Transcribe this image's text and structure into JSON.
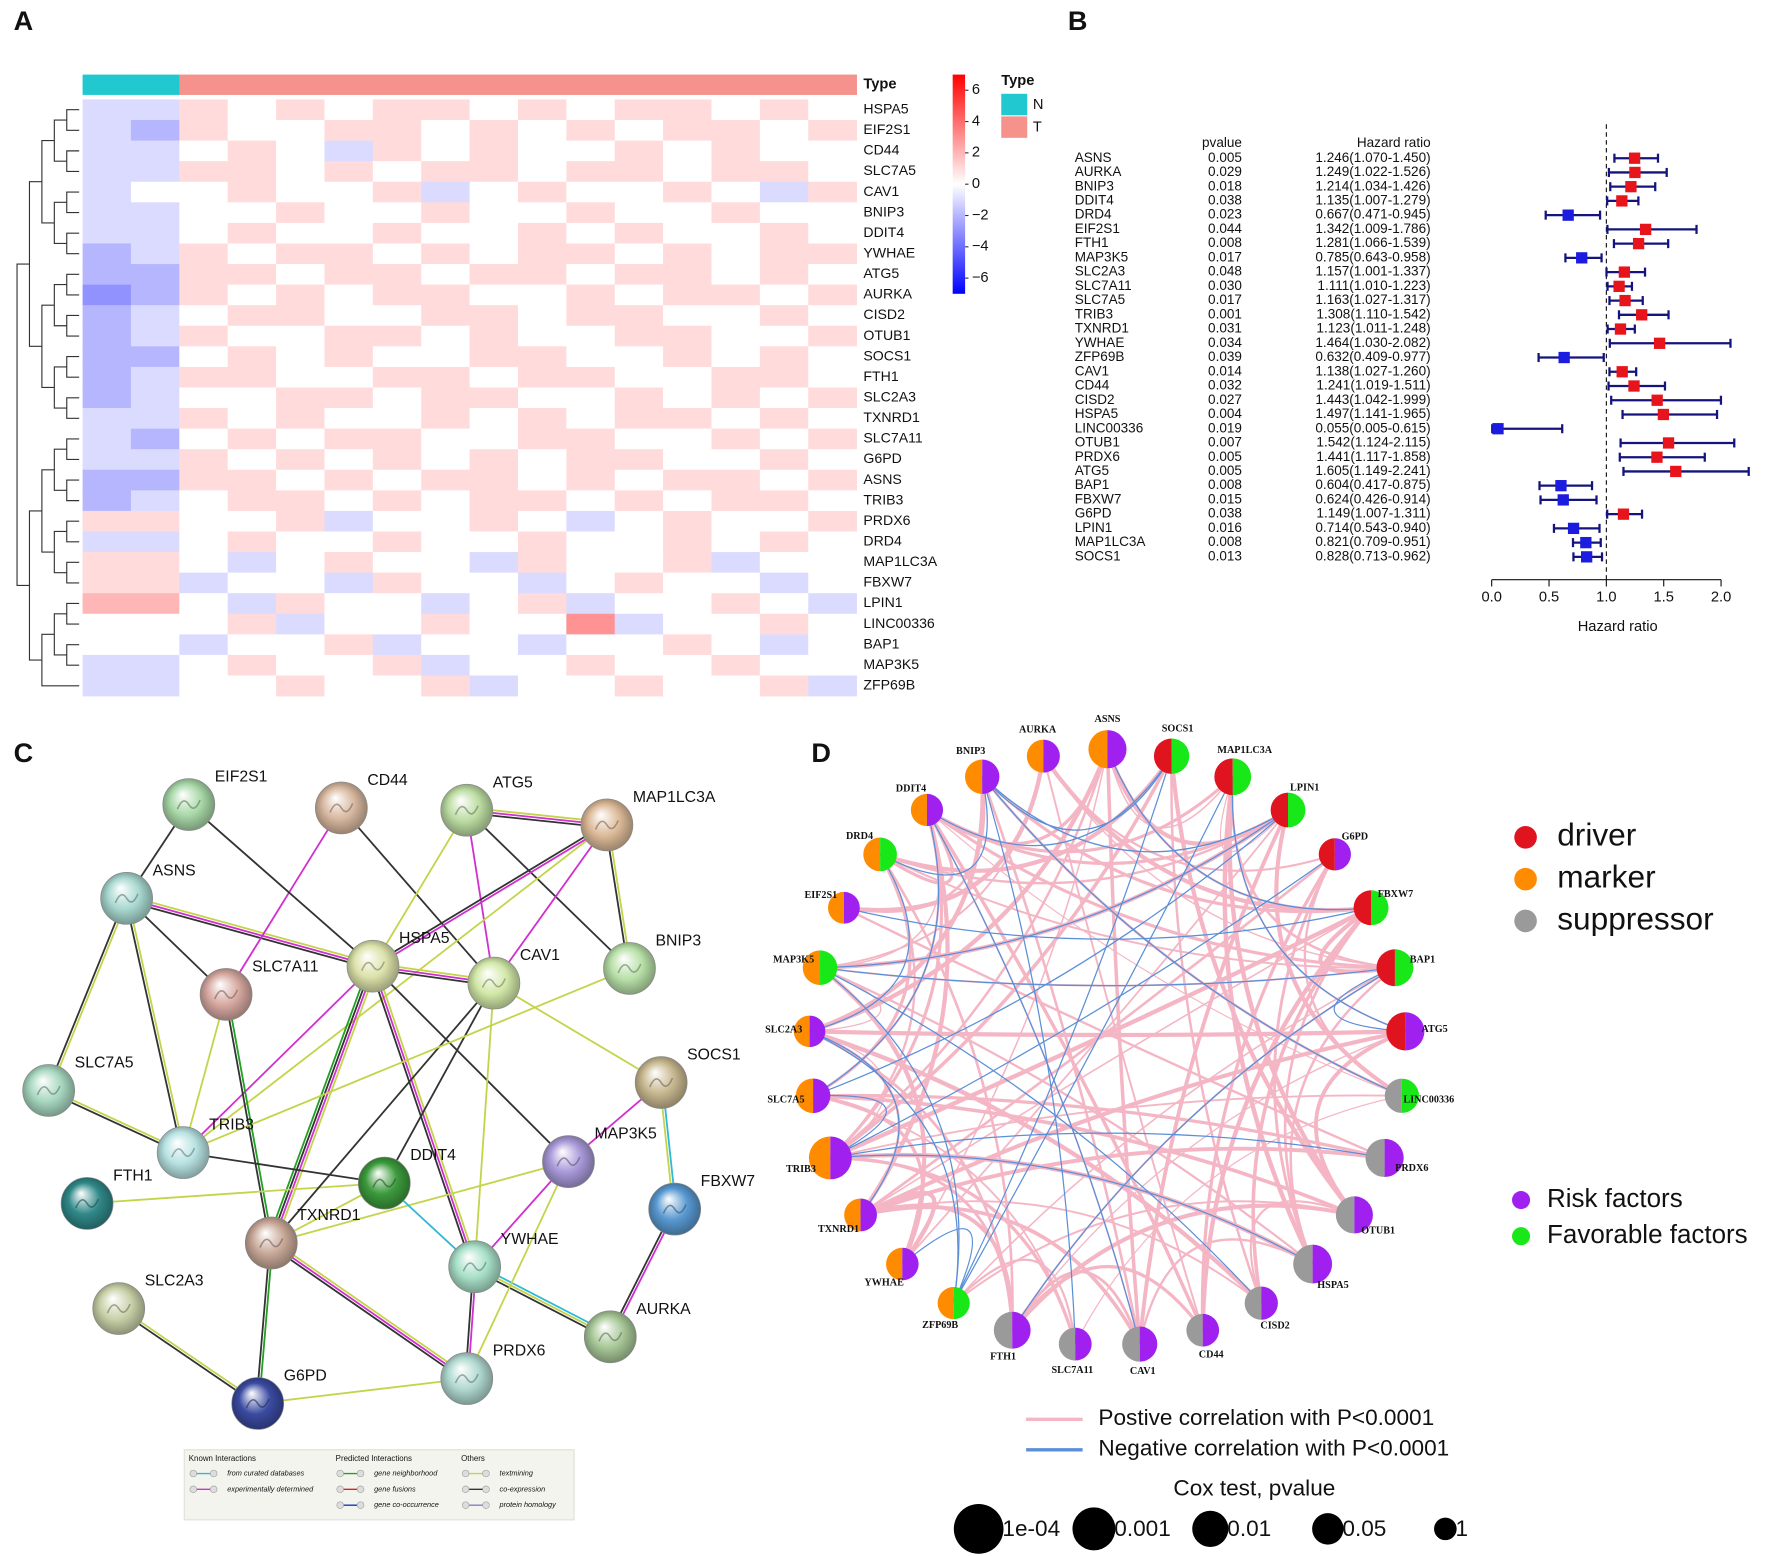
{
  "chart_data": [
    {
      "type": "heatmap",
      "panel": "A",
      "type_bar_label": "Type",
      "rows": [
        "HSPA5",
        "EIF2S1",
        "CD44",
        "SLC7A5",
        "CAV1",
        "BNIP3",
        "DDIT4",
        "YWHAE",
        "ATG5",
        "AURKA",
        "CISD2",
        "OTUB1",
        "SOCS1",
        "FTH1",
        "SLC2A3",
        "TXNRD1",
        "SLC7A11",
        "G6PD",
        "ASNS",
        "TRIB3",
        "PRDX6",
        "DRD4",
        "MAP1LC3A",
        "FBXW7",
        "LPIN1",
        "LINC00336",
        "BAP1",
        "MAP3K5",
        "ZFP69B"
      ],
      "column_types": [
        "N",
        "N",
        "T",
        "T",
        "T",
        "T",
        "T",
        "T",
        "T",
        "T",
        "T",
        "T",
        "T",
        "T",
        "T",
        "T"
      ],
      "values": [
        [
          -1,
          -1,
          1,
          0,
          1,
          0,
          1,
          1,
          0,
          1,
          0,
          1,
          1,
          0,
          1,
          0
        ],
        [
          -1,
          -2,
          1,
          0,
          0,
          1,
          1,
          0,
          1,
          0,
          1,
          0,
          1,
          1,
          0,
          1
        ],
        [
          -1,
          -1,
          0,
          1,
          0,
          -1,
          1,
          0,
          1,
          0,
          0,
          1,
          0,
          1,
          0,
          0
        ],
        [
          -1,
          -1,
          1,
          1,
          0,
          1,
          0,
          1,
          1,
          0,
          1,
          1,
          0,
          1,
          1,
          0
        ],
        [
          -1,
          0,
          0,
          1,
          0,
          0,
          1,
          -1,
          0,
          1,
          0,
          0,
          1,
          0,
          -1,
          1
        ],
        [
          -1,
          -1,
          0,
          0,
          1,
          0,
          0,
          1,
          0,
          0,
          1,
          0,
          0,
          1,
          0,
          0
        ],
        [
          -1,
          -1,
          0,
          1,
          0,
          0,
          1,
          0,
          0,
          1,
          0,
          1,
          0,
          0,
          1,
          0
        ],
        [
          -2,
          -1,
          1,
          0,
          1,
          1,
          0,
          1,
          0,
          1,
          1,
          0,
          1,
          0,
          1,
          1
        ],
        [
          -2,
          -2,
          1,
          1,
          0,
          1,
          1,
          0,
          1,
          1,
          0,
          1,
          1,
          0,
          1,
          0
        ],
        [
          -3,
          -2,
          1,
          0,
          1,
          0,
          1,
          1,
          0,
          0,
          1,
          0,
          1,
          1,
          0,
          1
        ],
        [
          -2,
          -1,
          0,
          1,
          1,
          0,
          0,
          1,
          1,
          0,
          1,
          1,
          0,
          0,
          1,
          0
        ],
        [
          -2,
          -1,
          1,
          0,
          0,
          1,
          1,
          0,
          1,
          0,
          0,
          1,
          1,
          0,
          0,
          1
        ],
        [
          -2,
          -2,
          0,
          1,
          0,
          1,
          0,
          0,
          1,
          1,
          0,
          0,
          1,
          0,
          1,
          0
        ],
        [
          -2,
          -1,
          1,
          1,
          0,
          0,
          1,
          1,
          0,
          1,
          1,
          0,
          0,
          1,
          1,
          0
        ],
        [
          -2,
          -1,
          0,
          0,
          1,
          1,
          0,
          1,
          1,
          0,
          0,
          1,
          0,
          1,
          0,
          1
        ],
        [
          -1,
          -1,
          1,
          0,
          1,
          0,
          0,
          1,
          0,
          1,
          0,
          1,
          1,
          0,
          1,
          0
        ],
        [
          -1,
          -2,
          0,
          1,
          0,
          1,
          1,
          0,
          0,
          1,
          1,
          0,
          0,
          1,
          0,
          1
        ],
        [
          -1,
          -1,
          1,
          0,
          1,
          0,
          1,
          0,
          1,
          0,
          1,
          1,
          0,
          0,
          1,
          0
        ],
        [
          -2,
          -2,
          1,
          1,
          0,
          1,
          0,
          1,
          1,
          0,
          1,
          0,
          1,
          1,
          0,
          1
        ],
        [
          -2,
          -1,
          0,
          1,
          1,
          0,
          1,
          0,
          1,
          1,
          0,
          1,
          0,
          1,
          1,
          0
        ],
        [
          1,
          1,
          0,
          0,
          1,
          -1,
          0,
          0,
          1,
          0,
          -1,
          0,
          1,
          0,
          0,
          1
        ],
        [
          -1,
          -1,
          0,
          1,
          0,
          0,
          1,
          0,
          0,
          1,
          0,
          0,
          1,
          0,
          1,
          0
        ],
        [
          1,
          1,
          0,
          -1,
          0,
          1,
          0,
          0,
          -1,
          1,
          0,
          0,
          1,
          -1,
          0,
          0
        ],
        [
          1,
          1,
          -1,
          0,
          0,
          -1,
          1,
          0,
          0,
          -1,
          0,
          1,
          0,
          0,
          -1,
          0
        ],
        [
          2,
          2,
          0,
          -1,
          1,
          0,
          0,
          -1,
          0,
          1,
          -1,
          0,
          0,
          1,
          0,
          -1
        ],
        [
          0,
          0,
          0,
          1,
          -1,
          0,
          0,
          1,
          0,
          0,
          3,
          -1,
          0,
          0,
          1,
          0
        ],
        [
          0,
          0,
          -1,
          0,
          0,
          1,
          -1,
          0,
          0,
          -1,
          0,
          0,
          1,
          0,
          -1,
          0
        ],
        [
          -1,
          -1,
          0,
          1,
          0,
          0,
          1,
          -1,
          0,
          0,
          1,
          0,
          0,
          1,
          0,
          0
        ],
        [
          -1,
          -1,
          0,
          0,
          1,
          0,
          0,
          1,
          -1,
          0,
          0,
          1,
          0,
          0,
          1,
          -1
        ]
      ],
      "type_legend": {
        "title": "Type",
        "names": [
          "N",
          "T"
        ],
        "colors": [
          "#22c8cf",
          "#f4928b"
        ]
      },
      "colorbar": {
        "lim": [
          -7,
          7
        ],
        "colors": [
          "#0000ff",
          "#ffffff",
          "#ff0000"
        ],
        "ticks": [
          6,
          4,
          2,
          0,
          {
            "value": -2,
            "label": "−2"
          },
          {
            "value": -4,
            "label": "−4"
          },
          {
            "value": -6,
            "label": "−6"
          }
        ]
      }
    },
    {
      "type": "forest",
      "panel": "B",
      "pvalue_header": "pvalue",
      "hr_header": "Hazard ratio",
      "xlabel": "Hazard ratio",
      "genes": [
        "ASNS",
        "AURKA",
        "BNIP3",
        "DDIT4",
        "DRD4",
        "EIF2S1",
        "FTH1",
        "MAP3K5",
        "SLC2A3",
        "SLC7A11",
        "SLC7A5",
        "TRIB3",
        "TXNRD1",
        "YWHAE",
        "ZFP69B",
        "CAV1",
        "CD44",
        "CISD2",
        "HSPA5",
        "LINC00336",
        "OTUB1",
        "PRDX6",
        "ATG5",
        "BAP1",
        "FBXW7",
        "G6PD",
        "LPIN1",
        "MAP1LC3A",
        "SOCS1"
      ],
      "pvalues": [
        0.005,
        0.029,
        0.018,
        0.038,
        0.023,
        0.044,
        0.008,
        0.017,
        0.048,
        0.03,
        0.017,
        0.001,
        0.031,
        0.034,
        0.039,
        0.014,
        0.032,
        0.027,
        0.004,
        0.019,
        0.007,
        0.005,
        0.005,
        0.008,
        0.015,
        0.038,
        0.016,
        0.008,
        0.013
      ],
      "pvalue_labels": [
        "0.005",
        "0.029",
        "0.018",
        "0.038",
        "0.023",
        "0.044",
        "0.008",
        "0.017",
        "0.048",
        "0.030",
        "0.017",
        "0.001",
        "0.031",
        "0.034",
        "0.039",
        "0.014",
        "0.032",
        "0.027",
        "0.004",
        "0.019",
        "0.007",
        "0.005",
        "0.005",
        "0.008",
        "0.015",
        "0.038",
        "0.016",
        "0.008",
        "0.013"
      ],
      "hr": [
        1.246,
        1.249,
        1.214,
        1.135,
        0.667,
        1.342,
        1.281,
        0.785,
        1.157,
        1.111,
        1.163,
        1.308,
        1.123,
        1.464,
        0.632,
        1.138,
        1.241,
        1.443,
        1.497,
        0.055,
        1.542,
        1.441,
        1.605,
        0.604,
        0.624,
        1.149,
        0.714,
        0.821,
        0.828
      ],
      "lower": [
        1.07,
        1.022,
        1.034,
        1.007,
        0.471,
        1.009,
        1.066,
        0.643,
        1.001,
        1.01,
        1.027,
        1.11,
        1.011,
        1.03,
        0.409,
        1.027,
        1.019,
        1.042,
        1.141,
        0.005,
        1.124,
        1.117,
        1.149,
        0.417,
        0.426,
        1.007,
        0.543,
        0.709,
        0.713
      ],
      "upper": [
        1.45,
        1.526,
        1.426,
        1.279,
        0.945,
        1.786,
        1.539,
        0.958,
        1.337,
        1.223,
        1.317,
        1.542,
        1.248,
        2.082,
        0.977,
        1.26,
        1.511,
        1.999,
        1.965,
        0.615,
        2.115,
        1.858,
        2.241,
        0.875,
        0.914,
        1.311,
        0.94,
        0.951,
        0.962
      ],
      "hr_labels": [
        "1.246(1.070-1.450)",
        "1.249(1.022-1.526)",
        "1.214(1.034-1.426)",
        "1.135(1.007-1.279)",
        "0.667(0.471-0.945)",
        "1.342(1.009-1.786)",
        "1.281(1.066-1.539)",
        "0.785(0.643-0.958)",
        "1.157(1.001-1.337)",
        "1.111(1.010-1.223)",
        "1.163(1.027-1.317)",
        "1.308(1.110-1.542)",
        "1.123(1.011-1.248)",
        "1.464(1.030-2.082)",
        "0.632(0.409-0.977)",
        "1.138(1.027-1.260)",
        "1.241(1.019-1.511)",
        "1.443(1.042-1.999)",
        "1.497(1.141-1.965)",
        "0.055(0.005-0.615)",
        "1.542(1.124-2.115)",
        "1.441(1.117-1.858)",
        "1.605(1.149-2.241)",
        "0.604(0.417-0.875)",
        "0.624(0.426-0.914)",
        "1.149(1.007-1.311)",
        "0.714(0.543-0.940)",
        "0.821(0.709-0.951)",
        "0.828(0.713-0.962)"
      ],
      "xlim": [
        0,
        2
      ],
      "xticks": [
        {
          "value": 0,
          "label": "0.0"
        },
        0.5,
        {
          "value": 1,
          "label": "1.0"
        },
        1.5,
        {
          "value": 2,
          "label": "2.0"
        }
      ],
      "ref": 1,
      "color_above": "#e8141c",
      "color_below": "#1c1ce0",
      "ci_color": "#14147c"
    }
  ],
  "network_c": {
    "panel": "C",
    "nodes": [
      "EIF2S1",
      "CD44",
      "ATG5",
      "MAP1LC3A",
      "ASNS",
      "HSPA5",
      "CAV1",
      "BNIP3",
      "SLC7A11",
      "SOCS1",
      "SLC7A5",
      "MAP3K5",
      "TRIB3",
      "DDIT4",
      "FBXW7",
      "FTH1",
      "TXNRD1",
      "YWHAE",
      "AURKA",
      "SLC2A3",
      "PRDX6",
      "G6PD"
    ],
    "legend": [
      {
        "title": "Known Interactions",
        "items": [
          "from curated databases",
          "experimentally determined"
        ]
      },
      {
        "title": "Predicted Interactions",
        "items": [
          "gene neighborhood",
          "gene fusions",
          "gene co-occurrence"
        ]
      },
      {
        "title": "Others",
        "items": [
          "textmining",
          "co-expression",
          "protein homology"
        ]
      }
    ]
  },
  "network_d": {
    "panel": "D",
    "nodes": [
      {
        "label": "ASNS",
        "type": 1
      },
      {
        "label": "SOCS1",
        "type": 0
      },
      {
        "label": "MAP1LC3A",
        "type": 0
      },
      {
        "label": "LPIN1",
        "type": 0
      },
      {
        "label": "G6PD",
        "type": 0
      },
      {
        "label": "FBXW7",
        "type": 0
      },
      {
        "label": "BAP1",
        "type": 0
      },
      {
        "label": "ATG5",
        "type": 0
      },
      {
        "label": "LINC00336",
        "type": 2
      },
      {
        "label": "PRDX6",
        "type": 2
      },
      {
        "label": "OTUB1",
        "type": 2
      },
      {
        "label": "HSPA5",
        "type": 2
      },
      {
        "label": "CISD2",
        "type": 2
      },
      {
        "label": "CD44",
        "type": 2
      },
      {
        "label": "CAV1",
        "type": 2
      },
      {
        "label": "SLC7A11",
        "type": 2
      },
      {
        "label": "FTH1",
        "type": 2
      },
      {
        "label": "ZFP69B",
        "type": 1
      },
      {
        "label": "YWHAE",
        "type": 1
      },
      {
        "label": "TXNRD1",
        "type": 1
      },
      {
        "label": "TRIB3",
        "type": 1
      },
      {
        "label": "SLC7A5",
        "type": 1
      },
      {
        "label": "SLC2A3",
        "type": 1
      },
      {
        "label": "MAP3K5",
        "type": 1
      },
      {
        "label": "EIF2S1",
        "type": 1
      },
      {
        "label": "DRD4",
        "type": 1
      },
      {
        "label": "DDIT4",
        "type": 1
      },
      {
        "label": "BNIP3",
        "type": 1
      },
      {
        "label": "AURKA",
        "type": 1
      }
    ],
    "type_legend": {
      "names": [
        "driver",
        "marker",
        "suppressor"
      ],
      "colors": [
        "#e0141e",
        "#ff8c00",
        "#9a9a9a"
      ]
    },
    "factor_legend": {
      "names": [
        "Risk factors",
        "Favorable factors"
      ],
      "colors": [
        "#a020f0",
        "#18e818"
      ]
    },
    "line_legend": {
      "names": [
        "Postive correlation with P<0.0001",
        "Negative correlation with P<0.0001"
      ],
      "colors": [
        "#f4b6c4",
        "#5b8fd8"
      ]
    },
    "size_title": "Cox test, pvalue",
    "size_legend": [
      {
        "value": 0.0001,
        "label": "1e-04"
      },
      0.001,
      0.01,
      0.05,
      1
    ]
  }
}
